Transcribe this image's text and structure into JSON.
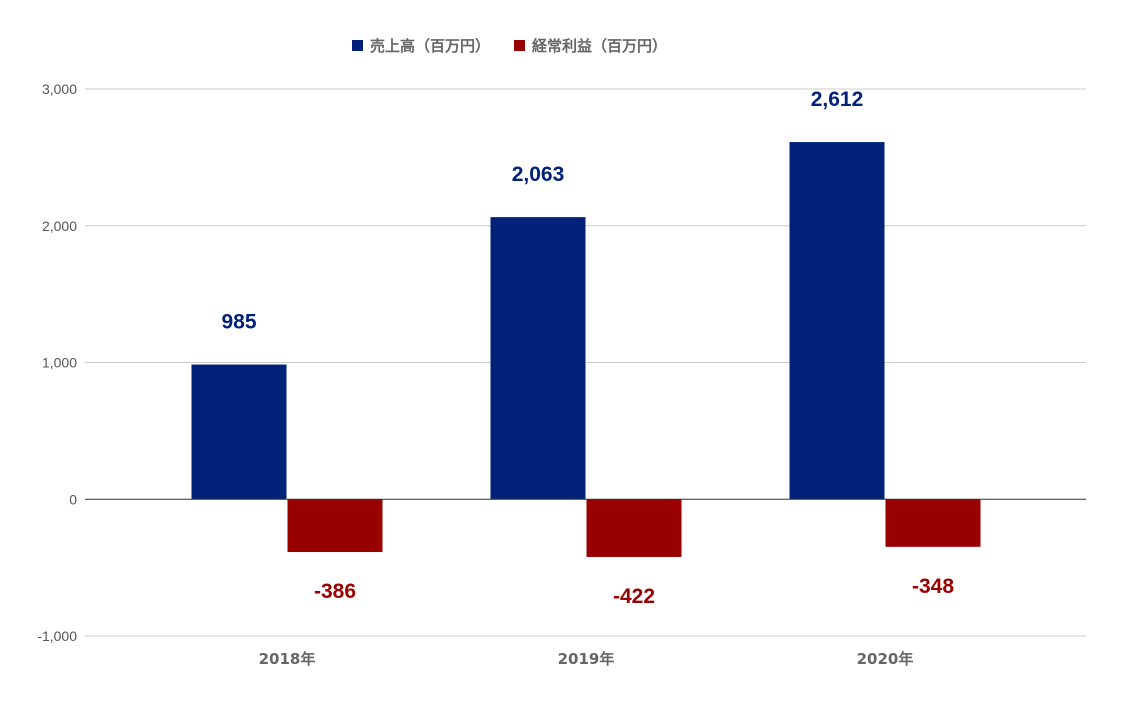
{
  "chart_data": {
    "type": "bar",
    "categories": [
      "2018年",
      "2019年",
      "2020年"
    ],
    "series": [
      {
        "name": "売上高（百万円）",
        "values": [
          985,
          2063,
          2612
        ],
        "labels": [
          "985",
          "2,063",
          "2,612"
        ],
        "color": "#012278"
      },
      {
        "name": "経常利益（百万円）",
        "values": [
          -386,
          -422,
          -348
        ],
        "labels": [
          "-386",
          "-422",
          "-348"
        ],
        "color": "#990000"
      }
    ],
    "ylim": [
      -1000,
      3000
    ],
    "yticks": [
      {
        "value": 3000,
        "label": "3,000"
      },
      {
        "value": 2000,
        "label": "2,000"
      },
      {
        "value": 1000,
        "label": "1,000"
      },
      {
        "value": 0,
        "label": "0"
      },
      {
        "value": -1000,
        "label": "-1,000"
      }
    ],
    "grid": true,
    "legend_position": "top-center",
    "xlabel": "",
    "ylabel": "",
    "title": ""
  }
}
